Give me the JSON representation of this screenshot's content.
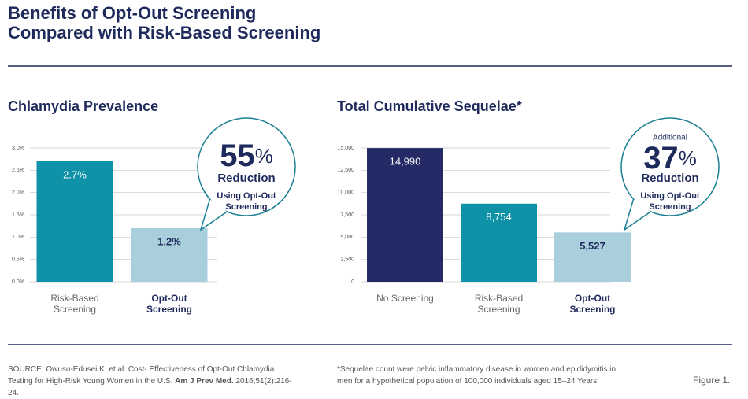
{
  "header": {
    "title_lines": [
      "Benefits of Opt-Out Screening",
      "Compared with Risk-Based Screening"
    ]
  },
  "chart_data": [
    {
      "type": "bar",
      "title": "Chlamydia Prevalence",
      "categories": [
        "Risk-Based Screening",
        "Opt-Out Screening"
      ],
      "values": [
        2.7,
        1.2
      ],
      "value_labels": [
        "2.7%",
        "1.2%"
      ],
      "colors": [
        "#0f91a8",
        "#a9cfdc"
      ],
      "ylim": [
        0,
        3
      ],
      "yticks": [
        {
          "value": 0,
          "label": "0.0%"
        },
        {
          "value": 0.5,
          "label": "0.5%"
        },
        {
          "value": 1,
          "label": "1.0%"
        },
        {
          "value": 1.5,
          "label": "1.5%"
        },
        {
          "value": 2,
          "label": "2.0%"
        },
        {
          "value": 2.5,
          "label": "2.5%"
        },
        {
          "value": 3,
          "label": "3.0%"
        }
      ],
      "grid": true,
      "callout": {
        "value": 55,
        "unit": "%",
        "label": "Reduction",
        "note": "Using Opt-Out Screening"
      }
    },
    {
      "type": "bar",
      "title": "Total Cumulative Sequelae*",
      "categories": [
        "No Screening",
        "Risk-Based Screening",
        "Opt-Out Screening"
      ],
      "values": [
        14990,
        8754,
        5527
      ],
      "value_labels": [
        "14,990",
        "8,754",
        "5,527"
      ],
      "colors": [
        "#232a66",
        "#0f91a8",
        "#a9cfdc"
      ],
      "ylim": [
        0,
        15000
      ],
      "yticks": [
        0,
        {
          "value": 2500,
          "label": "2,500"
        },
        {
          "value": 5000,
          "label": "5,000"
        },
        {
          "value": 7500,
          "label": "7,500"
        },
        {
          "value": 10000,
          "label": "10,000"
        },
        {
          "value": 12500,
          "label": "12,500"
        },
        {
          "value": 15000,
          "label": "15,000"
        }
      ],
      "grid": true,
      "callout": {
        "prefix": "Additional",
        "value": 37,
        "unit": "%",
        "label": "Reduction",
        "note": "Using Opt-Out Screening"
      }
    }
  ],
  "footer": {
    "source": [
      "SOURCE: Owusu-Edusei K, et al. Cost- Effectiveness of Opt-Out Chlamydia Testing for High-Risk Young Women in the U.S. ",
      "Am J Prev Med.",
      " 2016;51(2):216-24."
    ],
    "footnote": "*Sequelae count were pelvic inflammatory disease in women and epididymitis in men for a hypothetical population of 100,000 individuals aged 15–24 Years.",
    "figure": "Figure 1."
  }
}
